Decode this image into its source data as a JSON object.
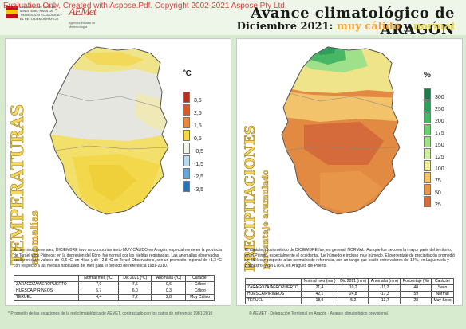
{
  "watermark": "Evaluation Only. Created with Aspose.Pdf. Copyright 2002-2021 Aspose Pty Ltd.",
  "header": {
    "title_visible": "Avance climatológico de ARAGÓN",
    "subtitle_prefix": "Diciembre 2021:",
    "subtitle_hot": "muy cálido",
    "subtitle_joiner": "y",
    "subtitle_normal": "normal",
    "gov_logo_text": "GOBIERNO DE ESPAÑA · MINISTERIO PARA LA TRANSICIÓN ECOLÓGICA Y EL RETO DEMOGRÁFICO",
    "aemet_mark": "AEMet",
    "aemet_sub": "Agencia Estatal de Meteorología"
  },
  "temperature_panel": {
    "vertical_title": "TEMPERATURAS",
    "vertical_subtitle": "anomalías",
    "unit": "ºC",
    "legend": [
      {
        "label": "3,5",
        "color": "#b5311f"
      },
      {
        "label": "2,5",
        "color": "#d55b2a"
      },
      {
        "label": "1,5",
        "color": "#ea8a3a"
      },
      {
        "label": "0,5",
        "color": "#f2d84a"
      },
      {
        "label": "-0,5",
        "color": "#f1f4e8"
      },
      {
        "label": "-1,5",
        "color": "#b9d7ef"
      },
      {
        "label": "-2,5",
        "color": "#6aa6d8"
      },
      {
        "label": "-3,5",
        "color": "#2b6fb5"
      }
    ],
    "text": "En términos generales, DICIEMBRE tuvo un comportamiento MUY CÁLIDO en Aragón, especialmente en la provincia de Teruel y los Pirineos; en la depresión del Ebro, fue normal por las nieblas registradas. Las anomalías observadas oscilaron entre valores de -0,5 ºC, en Híjar, y de +2,8 ºC en Teruel-Observatorio, con un promedio regional de +1,3 ºC con respecto a las medias habituales del mes para el periodo de referencia 1981-2010.",
    "table": {
      "headers": [
        "",
        "Normal mes (ºC)",
        "Dic 2021 (ºC)",
        "Anomalía (ºC)",
        "Carácter"
      ],
      "rows": [
        [
          "ZARAGOZA/AEROPUERTO",
          "7,0",
          "7,6",
          "0,6",
          "Cálido"
        ],
        [
          "HUESCA/PIRINEOS",
          "5,7",
          "6,0",
          "0,3",
          "Cálido"
        ],
        [
          "TERUEL",
          "4,4",
          "7,2",
          "2,8",
          "Muy Cálido"
        ]
      ]
    }
  },
  "precipitation_panel": {
    "vertical_title": "PRECIPITACIONES",
    "vertical_subtitle": "porcentaje acumulado",
    "unit": "%",
    "legend": [
      {
        "label": "300",
        "color": "#1f7a4a"
      },
      {
        "label": "250",
        "color": "#2f9e5a"
      },
      {
        "label": "200",
        "color": "#47b765"
      },
      {
        "label": "175",
        "color": "#6fcf73"
      },
      {
        "label": "150",
        "color": "#9fe08a"
      },
      {
        "label": "125",
        "color": "#cdeea0"
      },
      {
        "label": "100",
        "color": "#f3ef9c"
      },
      {
        "label": "75",
        "color": "#f2c36a"
      },
      {
        "label": "50",
        "color": "#e8974a"
      },
      {
        "label": "25",
        "color": "#d56a3a"
      }
    ],
    "text": "El carácter pluviométrico de DICIEMBRE fue, en general, NORMAL. Aunque fue seco en la mayor parte del territorio, en el Pirineo, especialmente el occidental, fue húmedo e incluso muy húmedo. El porcentaje de precipitación promedió un 69% con respecto a las normales de referencia, con un rango que osciló entre valores del 14%, en Lagueruela y Barbastro, y del 176%, en Aragüés del Puerto.",
    "table": {
      "headers": [
        "",
        "Normal mes (mm)",
        "Dic 2021 (mm)",
        "Anomalía (mm)",
        "Porcentaje (%)",
        "Carácter"
      ],
      "rows": [
        [
          "ZARAGOZA/AEROPUERTO",
          "21,4",
          "10,2",
          "-11,2",
          "48",
          "Seco"
        ],
        [
          "HUESCA/PIRINEOS",
          "42,1",
          "24,8",
          "-17,3",
          "59",
          "Normal"
        ],
        [
          "TERUEL",
          "18,9",
          "5,2",
          "-13,7",
          "28",
          "Muy Seco"
        ]
      ]
    }
  },
  "footer": {
    "left": "* Promedio de las estaciones de la red climatológica de AEMET, contrastado con los datos de referencia 1981-2010",
    "right": "© AEMET · Delegación Territorial en Aragón · Avance climatológico provisional"
  }
}
